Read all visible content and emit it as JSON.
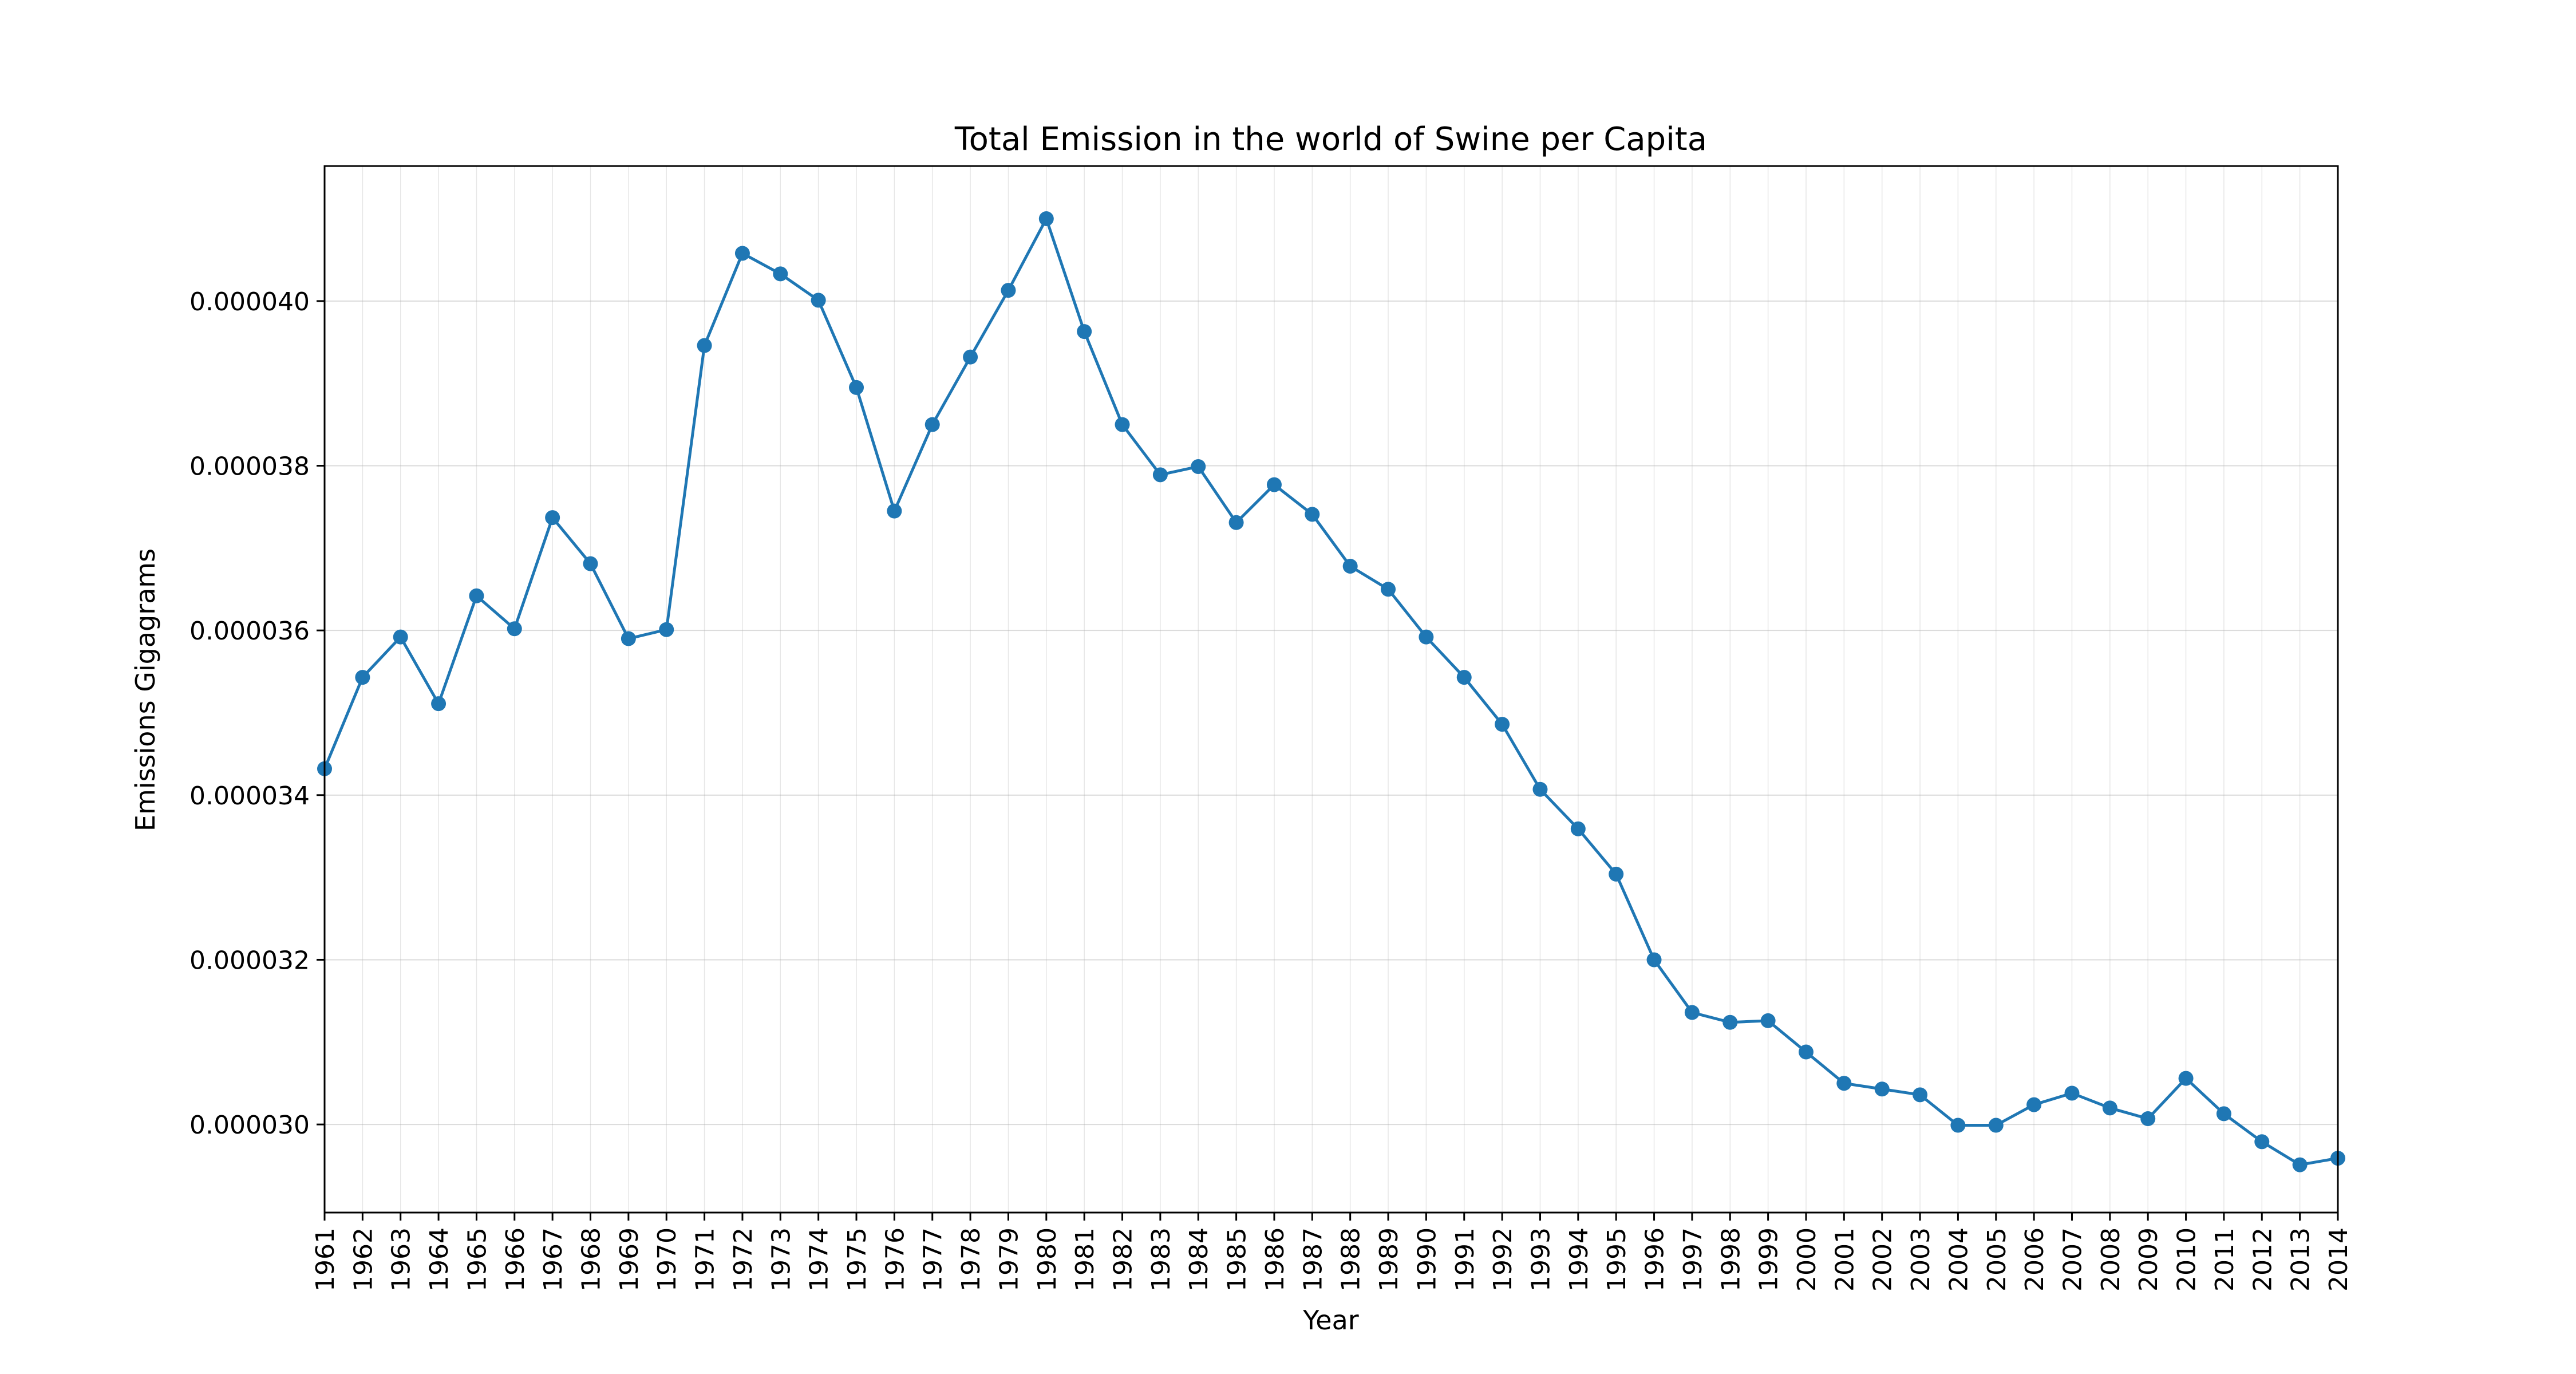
{
  "chart_data": {
    "type": "line",
    "title": "Total Emission in the world of Swine per Capita",
    "xlabel": "Year",
    "ylabel": "Emissions Gigagrams",
    "x": [
      1961,
      1962,
      1963,
      1964,
      1965,
      1966,
      1967,
      1968,
      1969,
      1970,
      1971,
      1972,
      1973,
      1974,
      1975,
      1976,
      1977,
      1978,
      1979,
      1980,
      1981,
      1982,
      1983,
      1984,
      1985,
      1986,
      1987,
      1988,
      1989,
      1990,
      1991,
      1992,
      1993,
      1994,
      1995,
      1996,
      1997,
      1998,
      1999,
      2000,
      2001,
      2002,
      2003,
      2004,
      2005,
      2006,
      2007,
      2008,
      2009,
      2010,
      2011,
      2012,
      2013,
      2014
    ],
    "series": [
      {
        "name": "",
        "color": "#1f77b4",
        "values": [
          3.432e-05,
          3.543e-05,
          3.592e-05,
          3.511e-05,
          3.642e-05,
          3.602e-05,
          3.737e-05,
          3.681e-05,
          3.59e-05,
          3.601e-05,
          3.946e-05,
          4.058e-05,
          4.033e-05,
          4.001e-05,
          3.895e-05,
          3.745e-05,
          3.85e-05,
          3.932e-05,
          4.013e-05,
          4.1e-05,
          3.963e-05,
          3.85e-05,
          3.789e-05,
          3.799e-05,
          3.731e-05,
          3.777e-05,
          3.741e-05,
          3.678e-05,
          3.65e-05,
          3.592e-05,
          3.543e-05,
          3.486e-05,
          3.407e-05,
          3.359e-05,
          3.304e-05,
          3.2e-05,
          3.136e-05,
          3.124e-05,
          3.126e-05,
          3.088e-05,
          3.05e-05,
          3.043e-05,
          3.036e-05,
          2.999e-05,
          2.999e-05,
          3.024e-05,
          3.038e-05,
          3.02e-05,
          3.007e-05,
          3.056e-05,
          3.013e-05,
          2.979e-05,
          2.951e-05,
          2.959e-05
        ]
      }
    ],
    "yticks": [
      3e-05,
      3.2e-05,
      3.4e-05,
      3.6e-05,
      3.8e-05,
      4e-05
    ],
    "ytick_labels": [
      "0.000030",
      "0.000032",
      "0.000034",
      "0.000036",
      "0.000038",
      "0.000040"
    ],
    "ylim": [
      2.893e-05,
      4.164e-05
    ],
    "xlim": [
      1961,
      2014
    ],
    "grid": true,
    "legend": "none"
  }
}
